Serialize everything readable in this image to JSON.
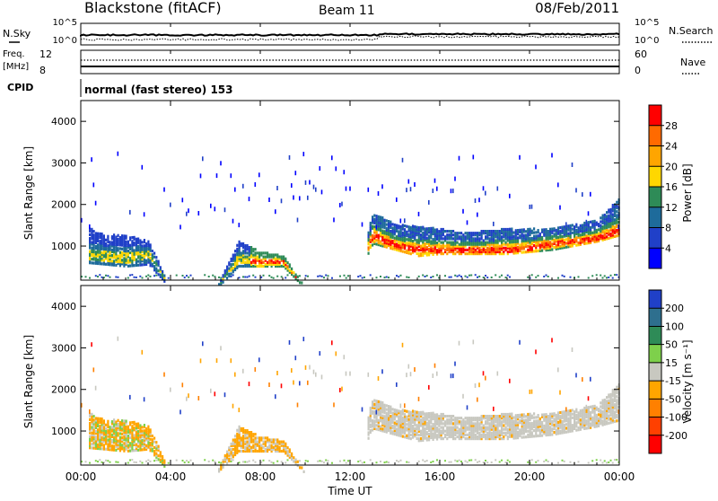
{
  "header": {
    "station": "Blackstone (fitACF)",
    "beam": "Beam 11",
    "date": "08/Feb/2011"
  },
  "panels": {
    "nsky_label": "N.Sky",
    "nsearch_label": "N.Search",
    "nsky_ticks": [
      "10^5",
      "10^0"
    ],
    "nsearch_ticks": [
      "10^5",
      "10^0"
    ],
    "freq_label": "Freq.",
    "freq_units": "[MHz]",
    "freq_ticks": [
      "12",
      "8"
    ],
    "nave_label": "Nave",
    "nave_ticks": [
      "60",
      "0"
    ],
    "cpid_label": "CPID",
    "cpid_text": "normal (fast stereo) 153"
  },
  "chart_data": [
    {
      "type": "heatmap",
      "name": "power",
      "ylabel": "Slant Range [km]",
      "xlabel": "Time UT",
      "yticks": [
        "4000",
        "3000",
        "2000",
        "1000"
      ],
      "ylim": [
        180,
        4500
      ],
      "colorbar": {
        "label": "Power [dB]",
        "ticks": [
          "28",
          "24",
          "20",
          "16",
          "12",
          "8",
          "4"
        ],
        "colors": [
          "#ff0000",
          "#ff6a00",
          "#ffa500",
          "#ffd700",
          "#2e8b57",
          "#1e6b9b",
          "#2040c8",
          "#0000ff"
        ]
      },
      "x": [
        0,
        1,
        2,
        3,
        4,
        5,
        6,
        7,
        8,
        9,
        10,
        11,
        12,
        13,
        14,
        15,
        16,
        17,
        18,
        19,
        20,
        21,
        22,
        23,
        24
      ],
      "echo_upper_km": [
        1550,
        1300,
        1300,
        1150,
        0,
        0,
        0,
        1150,
        900,
        800,
        0,
        0,
        0,
        1850,
        1550,
        1500,
        1450,
        1350,
        1400,
        1450,
        1450,
        1450,
        1550,
        1650,
        2200
      ],
      "echo_lower_km": [
        650,
        600,
        550,
        600,
        0,
        0,
        0,
        550,
        550,
        550,
        0,
        0,
        0,
        1100,
        950,
        800,
        850,
        850,
        850,
        850,
        900,
        950,
        1050,
        1150,
        1300
      ],
      "peak_km": [
        850,
        800,
        750,
        850,
        0,
        0,
        0,
        750,
        650,
        650,
        0,
        0,
        0,
        1300,
        1050,
        950,
        950,
        950,
        950,
        950,
        1000,
        1100,
        1150,
        1250,
        1400
      ]
    },
    {
      "type": "heatmap",
      "name": "velocity",
      "ylabel": "Slant Range [km]",
      "xlabel": "Time UT",
      "yticks": [
        "4000",
        "3000",
        "2000",
        "1000"
      ],
      "ylim": [
        180,
        4500
      ],
      "colorbar": {
        "label": "Velocity [m s⁻¹]",
        "ticks": [
          "200",
          "100",
          "50",
          "15",
          "-15",
          "-50",
          "-100",
          "-200"
        ],
        "colors": [
          "#2040c8",
          "#2e6f8e",
          "#2e8b57",
          "#7ed04b",
          "#c8c8c0",
          "#ffa500",
          "#ff8000",
          "#ff4000",
          "#ff0000"
        ]
      }
    }
  ],
  "axis": {
    "xticks": [
      "00:00",
      "04:00",
      "08:00",
      "12:00",
      "16:00",
      "20:00",
      "00:00"
    ],
    "xlabel": "Time UT"
  }
}
